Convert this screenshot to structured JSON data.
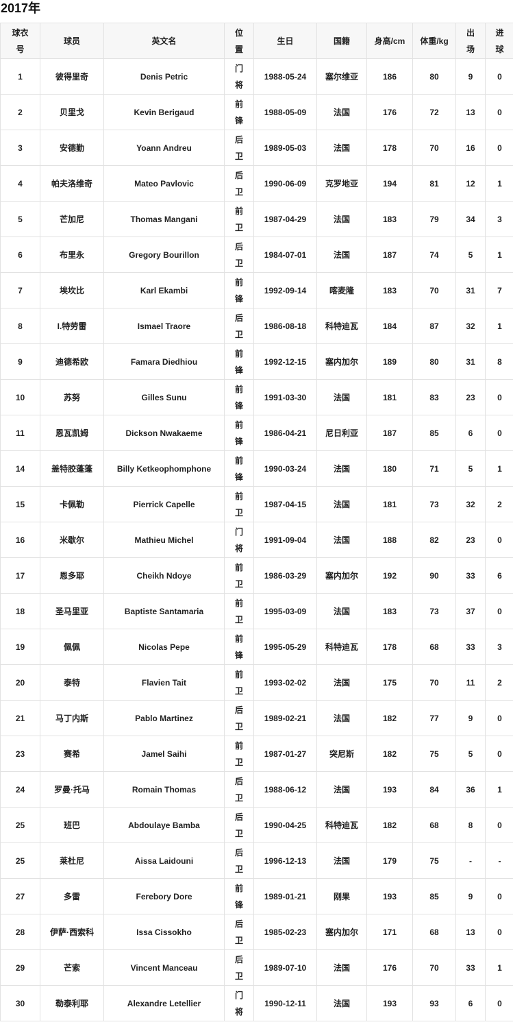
{
  "title": "2017年",
  "headers": [
    "球衣号",
    "球员",
    "英文名",
    "位置",
    "生日",
    "国籍",
    "身高/cm",
    "体重/kg",
    "出场",
    "进球"
  ],
  "rows": [
    [
      "1",
      "彼得里奇",
      "Denis Petric",
      "门将",
      "1988-05-24",
      "塞尔维亚",
      "186",
      "80",
      "9",
      "0"
    ],
    [
      "2",
      "贝里戈",
      "Kevin Berigaud",
      "前锋",
      "1988-05-09",
      "法国",
      "176",
      "72",
      "13",
      "0"
    ],
    [
      "3",
      "安德勤",
      "Yoann Andreu",
      "后卫",
      "1989-05-03",
      "法国",
      "178",
      "70",
      "16",
      "0"
    ],
    [
      "4",
      "帕夫洛维奇",
      "Mateo Pavlovic",
      "后卫",
      "1990-06-09",
      "克罗地亚",
      "194",
      "81",
      "12",
      "1"
    ],
    [
      "5",
      "芒加尼",
      "Thomas Mangani",
      "前卫",
      "1987-04-29",
      "法国",
      "183",
      "79",
      "34",
      "3"
    ],
    [
      "6",
      "布里永",
      "Gregory Bourillon",
      "后卫",
      "1984-07-01",
      "法国",
      "187",
      "74",
      "5",
      "1"
    ],
    [
      "7",
      "埃坎比",
      "Karl Ekambi",
      "前锋",
      "1992-09-14",
      "喀麦隆",
      "183",
      "70",
      "31",
      "7"
    ],
    [
      "8",
      "I.特劳雷",
      "Ismael Traore",
      "后卫",
      "1986-08-18",
      "科特迪瓦",
      "184",
      "87",
      "32",
      "1"
    ],
    [
      "9",
      "迪德希欧",
      "Famara Diedhiou",
      "前锋",
      "1992-12-15",
      "塞内加尔",
      "189",
      "80",
      "31",
      "8"
    ],
    [
      "10",
      "苏努",
      "Gilles Sunu",
      "前锋",
      "1991-03-30",
      "法国",
      "181",
      "83",
      "23",
      "0"
    ],
    [
      "11",
      "恩瓦凯姆",
      "Dickson Nwakaeme",
      "前锋",
      "1986-04-21",
      "尼日利亚",
      "187",
      "85",
      "6",
      "0"
    ],
    [
      "14",
      "盖特胶蓬蓬",
      "Billy Ketkeophomphone",
      "前锋",
      "1990-03-24",
      "法国",
      "180",
      "71",
      "5",
      "1"
    ],
    [
      "15",
      "卡佩勒",
      "Pierrick Capelle",
      "前卫",
      "1987-04-15",
      "法国",
      "181",
      "73",
      "32",
      "2"
    ],
    [
      "16",
      "米歇尔",
      "Mathieu Michel",
      "门将",
      "1991-09-04",
      "法国",
      "188",
      "82",
      "23",
      "0"
    ],
    [
      "17",
      "恩多耶",
      "Cheikh Ndoye",
      "前卫",
      "1986-03-29",
      "塞内加尔",
      "192",
      "90",
      "33",
      "6"
    ],
    [
      "18",
      "圣马里亚",
      "Baptiste Santamaria",
      "前卫",
      "1995-03-09",
      "法国",
      "183",
      "73",
      "37",
      "0"
    ],
    [
      "19",
      "佩佩",
      "Nicolas Pepe",
      "前锋",
      "1995-05-29",
      "科特迪瓦",
      "178",
      "68",
      "33",
      "3"
    ],
    [
      "20",
      "泰特",
      "Flavien Tait",
      "前卫",
      "1993-02-02",
      "法国",
      "175",
      "70",
      "11",
      "2"
    ],
    [
      "21",
      "马丁内斯",
      "Pablo Martinez",
      "后卫",
      "1989-02-21",
      "法国",
      "182",
      "77",
      "9",
      "0"
    ],
    [
      "23",
      "赛希",
      "Jamel Saihi",
      "前卫",
      "1987-01-27",
      "突尼斯",
      "182",
      "75",
      "5",
      "0"
    ],
    [
      "24",
      "罗曼·托马",
      "Romain Thomas",
      "后卫",
      "1988-06-12",
      "法国",
      "193",
      "84",
      "36",
      "1"
    ],
    [
      "25",
      "班巴",
      "Abdoulaye Bamba",
      "后卫",
      "1990-04-25",
      "科特迪瓦",
      "182",
      "68",
      "8",
      "0"
    ],
    [
      "25",
      "莱杜尼",
      "Aissa Laidouni",
      "后卫",
      "1996-12-13",
      "法国",
      "179",
      "75",
      "-",
      "-"
    ],
    [
      "27",
      "多雷",
      "Ferebory Dore",
      "前锋",
      "1989-01-21",
      "刚果",
      "193",
      "85",
      "9",
      "0"
    ],
    [
      "28",
      "伊萨·西索科",
      "Issa Cissokho",
      "后卫",
      "1985-02-23",
      "塞内加尔",
      "171",
      "68",
      "13",
      "0"
    ],
    [
      "29",
      "芒索",
      "Vincent Manceau",
      "后卫",
      "1989-07-10",
      "法国",
      "176",
      "70",
      "33",
      "1"
    ],
    [
      "30",
      "勒泰利耶",
      "Alexandre Letellier",
      "门将",
      "1990-12-11",
      "法国",
      "193",
      "93",
      "6",
      "0"
    ]
  ]
}
